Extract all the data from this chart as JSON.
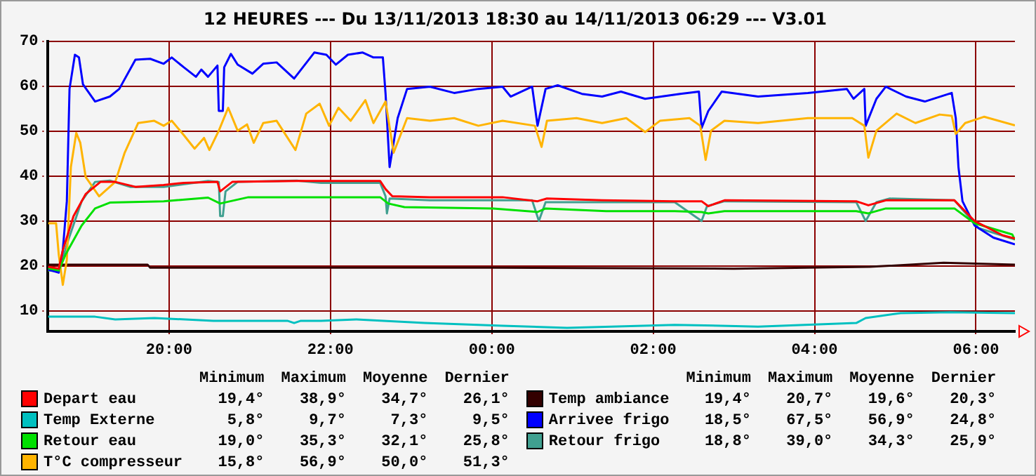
{
  "chart_data": {
    "type": "line",
    "title": "12 HEURES --- Du 13/11/2013 18:30 au 14/11/2013 06:29 --- V3.01",
    "xlim": [
      "2013-11-13T18:30",
      "2013-11-14T06:29"
    ],
    "xticks": [
      {
        "value": "2013-11-13T20:00",
        "label": "20:00"
      },
      {
        "value": "2013-11-13T22:00",
        "label": "22:00"
      },
      {
        "value": "2013-11-14T00:00",
        "label": "00:00"
      },
      {
        "value": "2013-11-14T02:00",
        "label": "02:00"
      },
      {
        "value": "2013-11-14T04:00",
        "label": "04:00"
      },
      {
        "value": "2013-11-14T06:00",
        "label": "06:00"
      }
    ],
    "ylim": [
      5.5,
      70
    ],
    "yticks": [
      10,
      20,
      30,
      40,
      50,
      60,
      70
    ],
    "grid": true,
    "legend": "bottom",
    "marker": "none",
    "line_style": "solid",
    "series": [
      {
        "name": "Depart eau",
        "color": "#ff0000",
        "x": [
          "2013-11-13T18:30",
          "2013-11-13T18:38",
          "2013-11-13T18:41",
          "2013-11-13T18:49",
          "2013-11-13T18:58",
          "2013-11-13T19:09",
          "2013-11-13T19:20",
          "2013-11-13T19:35",
          "2013-11-13T19:56",
          "2013-11-13T20:11",
          "2013-11-13T20:36",
          "2013-11-13T20:38",
          "2013-11-13T20:47",
          "2013-11-13T21:35",
          "2013-11-13T22:37",
          "2013-11-13T22:41",
          "2013-11-13T22:46",
          "2013-11-13T23:14",
          "2013-11-14T00:08",
          "2013-11-14T00:34",
          "2013-11-14T00:41",
          "2013-11-14T01:22",
          "2013-11-14T02:16",
          "2013-11-14T02:36",
          "2013-11-14T02:41",
          "2013-11-14T02:53",
          "2013-11-14T04:31",
          "2013-11-14T04:40",
          "2013-11-14T04:53",
          "2013-11-14T05:44",
          "2013-11-14T05:59",
          "2013-11-14T06:20",
          "2013-11-14T06:29"
        ],
        "values": [
          19.8,
          19.4,
          23.5,
          31.1,
          36,
          38.7,
          38.7,
          37.6,
          38,
          38.5,
          38.7,
          36.6,
          38.7,
          38.9,
          38.9,
          37.1,
          35.5,
          35.3,
          35.3,
          34.4,
          35,
          34.6,
          34.4,
          34.4,
          33.3,
          34.6,
          34.4,
          33.5,
          34.6,
          34.6,
          30,
          26.8,
          26.1
        ]
      },
      {
        "name": "Temp Externe",
        "color": "#00c0c0",
        "x": [
          "2013-11-13T18:30",
          "2013-11-13T19:05",
          "2013-11-13T19:20",
          "2013-11-13T19:49",
          "2013-11-13T20:33",
          "2013-11-13T21:28",
          "2013-11-13T21:33",
          "2013-11-13T21:38",
          "2013-11-13T21:53",
          "2013-11-13T22:19",
          "2013-11-13T23:10",
          "2013-11-14T00:08",
          "2013-11-14T00:56",
          "2013-11-14T02:16",
          "2013-11-14T03:18",
          "2013-11-14T04:31",
          "2013-11-14T04:38",
          "2013-11-14T05:04",
          "2013-11-14T05:41",
          "2013-11-14T06:29"
        ],
        "values": [
          8.7,
          8.7,
          8.1,
          8.4,
          7.8,
          7.8,
          7.3,
          7.8,
          7.8,
          8.1,
          7.3,
          6.7,
          6.2,
          6.9,
          6.5,
          7.3,
          8.4,
          9.5,
          9.7,
          9.5
        ]
      },
      {
        "name": "Retour eau",
        "color": "#00e000",
        "x": [
          "2013-11-13T18:30",
          "2013-11-13T18:38",
          "2013-11-13T18:43",
          "2013-11-13T18:55",
          "2013-11-13T19:05",
          "2013-11-13T19:16",
          "2013-11-13T19:56",
          "2013-11-13T20:29",
          "2013-11-13T20:38",
          "2013-11-13T20:59",
          "2013-11-13T21:53",
          "2013-11-13T22:37",
          "2013-11-13T22:43",
          "2013-11-13T22:55",
          "2013-11-14T00:01",
          "2013-11-14T00:34",
          "2013-11-14T00:40",
          "2013-11-14T01:25",
          "2013-11-14T02:16",
          "2013-11-14T02:36",
          "2013-11-14T02:41",
          "2013-11-14T02:53",
          "2013-11-14T04:31",
          "2013-11-14T04:40",
          "2013-11-14T04:53",
          "2013-11-14T05:44",
          "2013-11-14T05:59",
          "2013-11-14T06:27",
          "2013-11-14T06:29"
        ],
        "values": [
          19.5,
          19,
          22.5,
          29,
          32.8,
          34.1,
          34.4,
          35.2,
          33.9,
          35.3,
          35.3,
          35.3,
          33.9,
          33.1,
          32.8,
          32,
          32.8,
          32.2,
          32.2,
          32,
          31.7,
          32.2,
          32.2,
          31.7,
          32.8,
          32.8,
          29.5,
          27,
          25.8
        ]
      },
      {
        "name": "T°C compresseur",
        "color": "#ffb400",
        "x": [
          "2013-11-13T18:30",
          "2013-11-13T18:36",
          "2013-11-13T18:38",
          "2013-11-13T18:41",
          "2013-11-13T18:44",
          "2013-11-13T18:47",
          "2013-11-13T18:51",
          "2013-11-13T18:54",
          "2013-11-13T18:58",
          "2013-11-13T19:08",
          "2013-11-13T19:20",
          "2013-11-13T19:27",
          "2013-11-13T19:37",
          "2013-11-13T19:49",
          "2013-11-13T19:56",
          "2013-11-13T20:02",
          "2013-11-13T20:11",
          "2013-11-13T20:19",
          "2013-11-13T20:26",
          "2013-11-13T20:30",
          "2013-11-13T20:37",
          "2013-11-13T20:44",
          "2013-11-13T20:51",
          "2013-11-13T20:58",
          "2013-11-13T21:03",
          "2013-11-13T21:10",
          "2013-11-13T21:20",
          "2013-11-13T21:34",
          "2013-11-13T21:42",
          "2013-11-13T21:52",
          "2013-11-13T21:59",
          "2013-11-13T22:06",
          "2013-11-13T22:15",
          "2013-11-13T22:26",
          "2013-11-13T22:32",
          "2013-11-13T22:41",
          "2013-11-13T22:47",
          "2013-11-13T22:57",
          "2013-11-13T23:14",
          "2013-11-13T23:32",
          "2013-11-13T23:50",
          "2013-11-14T00:08",
          "2013-11-14T00:32",
          "2013-11-14T00:37",
          "2013-11-14T00:41",
          "2013-11-14T01:03",
          "2013-11-14T01:22",
          "2013-11-14T01:40",
          "2013-11-14T01:54",
          "2013-11-14T02:05",
          "2013-11-14T02:27",
          "2013-11-14T02:35",
          "2013-11-14T02:39",
          "2013-11-14T02:43",
          "2013-11-14T02:53",
          "2013-11-14T03:18",
          "2013-11-14T03:55",
          "2013-11-14T04:28",
          "2013-11-14T04:37",
          "2013-11-14T04:40",
          "2013-11-14T04:46",
          "2013-11-14T05:01",
          "2013-11-14T05:15",
          "2013-11-14T05:33",
          "2013-11-14T05:42",
          "2013-11-14T05:45",
          "2013-11-14T05:52",
          "2013-11-14T06:06",
          "2013-11-14T06:29"
        ],
        "values": [
          29.5,
          29.5,
          22.5,
          15.8,
          21.4,
          42,
          49.6,
          47.4,
          39.8,
          35.5,
          38.7,
          45.2,
          51.8,
          52.3,
          51.2,
          52.3,
          49.1,
          46.1,
          48.5,
          45.8,
          50.1,
          55.2,
          50.1,
          51.5,
          47.4,
          51.8,
          52.3,
          45.8,
          53.9,
          56.1,
          51.2,
          55.2,
          52.3,
          56.9,
          51.8,
          56.6,
          45.2,
          52.9,
          52.3,
          52.9,
          51.2,
          52.3,
          51.2,
          46.5,
          52.3,
          52.9,
          51.8,
          52.9,
          49.8,
          52.3,
          52.9,
          51.2,
          43.6,
          50.1,
          52.3,
          51.8,
          52.9,
          52.9,
          51.2,
          44.1,
          50.1,
          53.9,
          51.8,
          53.7,
          53.4,
          49.4,
          51.8,
          53.2,
          51.3
        ]
      },
      {
        "name": "Temp ambiance",
        "color": "#330000",
        "x": [
          "2013-11-13T18:30",
          "2013-11-13T19:44",
          "2013-11-13T19:46",
          "2013-11-14T00:00",
          "2013-11-14T03:00",
          "2013-11-14T04:41",
          "2013-11-14T05:36",
          "2013-11-14T06:29"
        ],
        "values": [
          20.3,
          20.3,
          19.6,
          19.6,
          19.4,
          19.8,
          20.7,
          20.3
        ]
      },
      {
        "name": "Arrivee frigo",
        "color": "#0000ff",
        "x": [
          "2013-11-13T18:30",
          "2013-11-13T18:38",
          "2013-11-13T18:41",
          "2013-11-13T18:44",
          "2013-11-13T18:46",
          "2013-11-13T18:50",
          "2013-11-13T18:53",
          "2013-11-13T18:56",
          "2013-11-13T19:05",
          "2013-11-13T19:16",
          "2013-11-13T19:23",
          "2013-11-13T19:35",
          "2013-11-13T19:46",
          "2013-11-13T19:56",
          "2013-11-13T20:02",
          "2013-11-13T20:11",
          "2013-11-13T20:20",
          "2013-11-13T20:24",
          "2013-11-13T20:29",
          "2013-11-13T20:36",
          "2013-11-13T20:37",
          "2013-11-13T20:40",
          "2013-11-13T20:41",
          "2013-11-13T20:46",
          "2013-11-13T20:51",
          "2013-11-13T21:02",
          "2013-11-13T21:10",
          "2013-11-13T21:20",
          "2013-11-13T21:33",
          "2013-11-13T21:48",
          "2013-11-13T21:57",
          "2013-11-13T22:04",
          "2013-11-13T22:13",
          "2013-11-13T22:24",
          "2013-11-13T22:32",
          "2013-11-13T22:39",
          "2013-11-13T22:41",
          "2013-11-13T22:44",
          "2013-11-13T22:50",
          "2013-11-13T22:57",
          "2013-11-13T23:14",
          "2013-11-13T23:32",
          "2013-11-13T23:50",
          "2013-11-14T00:08",
          "2013-11-14T00:14",
          "2013-11-14T00:30",
          "2013-11-14T00:34",
          "2013-11-14T00:40",
          "2013-11-14T00:49",
          "2013-11-14T01:07",
          "2013-11-14T01:22",
          "2013-11-14T01:36",
          "2013-11-14T01:54",
          "2013-11-14T02:20",
          "2013-11-14T02:34",
          "2013-11-14T02:36",
          "2013-11-14T02:41",
          "2013-11-14T02:51",
          "2013-11-14T03:18",
          "2013-11-14T03:55",
          "2013-11-14T04:24",
          "2013-11-14T04:29",
          "2013-11-14T04:37",
          "2013-11-14T04:38",
          "2013-11-14T04:46",
          "2013-11-14T04:53",
          "2013-11-14T05:08",
          "2013-11-14T05:22",
          "2013-11-14T05:42",
          "2013-11-14T05:45",
          "2013-11-14T05:47",
          "2013-11-14T05:50",
          "2013-11-14T05:59",
          "2013-11-14T06:13",
          "2013-11-14T06:29"
        ],
        "values": [
          19.2,
          18.5,
          23.5,
          34.4,
          59.4,
          67,
          66.4,
          60.4,
          56.6,
          57.7,
          59.4,
          65.9,
          66.1,
          65,
          66.4,
          64.2,
          62.1,
          63.7,
          62.1,
          64.6,
          54.5,
          54.5,
          64.2,
          67.2,
          64.8,
          62.8,
          65,
          65.3,
          61.7,
          67.5,
          67,
          64.8,
          67,
          67.5,
          66.4,
          66.4,
          58.3,
          42,
          52.9,
          59.4,
          59.9,
          58.5,
          59.4,
          59.9,
          57.7,
          59.9,
          51.2,
          59.4,
          60.2,
          58.3,
          57.7,
          58.8,
          57.2,
          58.3,
          58.8,
          50.7,
          54.5,
          58.8,
          57.7,
          58.5,
          59.4,
          57.2,
          59.4,
          51.2,
          57.2,
          59.9,
          57.7,
          56.6,
          58.5,
          52.9,
          42,
          34.4,
          29,
          26.3,
          24.8
        ]
      },
      {
        "name": "Retour frigo",
        "color": "#40a090",
        "x": [
          "2013-11-13T18:30",
          "2013-11-13T18:38",
          "2013-11-13T18:45",
          "2013-11-13T18:55",
          "2013-11-13T19:05",
          "2013-11-13T19:16",
          "2013-11-13T19:31",
          "2013-11-13T19:56",
          "2013-11-13T20:29",
          "2013-11-13T20:37",
          "2013-11-13T20:38",
          "2013-11-13T20:40",
          "2013-11-13T20:42",
          "2013-11-13T20:51",
          "2013-11-13T21:35",
          "2013-11-13T21:53",
          "2013-11-13T22:37",
          "2013-11-13T22:41",
          "2013-11-13T22:42",
          "2013-11-13T22:44",
          "2013-11-13T23:14",
          "2013-11-14T00:30",
          "2013-11-14T00:35",
          "2013-11-14T00:40",
          "2013-11-14T02:16",
          "2013-11-14T02:36",
          "2013-11-14T02:40",
          "2013-11-14T02:53",
          "2013-11-14T04:31",
          "2013-11-14T04:38",
          "2013-11-14T04:46",
          "2013-11-14T04:56",
          "2013-11-14T05:44",
          "2013-11-14T06:02",
          "2013-11-14T06:29"
        ],
        "values": [
          19,
          18.8,
          25.7,
          34.4,
          38.7,
          39,
          37.6,
          37.6,
          38.9,
          38.7,
          31.1,
          31.1,
          36.6,
          38.7,
          39,
          38.5,
          38.5,
          35.5,
          31.7,
          35,
          34.6,
          34.6,
          30,
          34.2,
          34.2,
          30,
          33.3,
          34.4,
          34.2,
          30,
          34.2,
          35,
          34.6,
          28.4,
          25.9
        ]
      }
    ],
    "annotations": [
      "Minimum",
      "Maximum",
      "Moyenne",
      "Dernier",
      "Minimum",
      "Maximum",
      "Moyenne",
      "Dernier",
      "19,4°",
      "38,9°",
      "34,7°",
      "26,1°",
      "5,8°",
      "9,7°",
      "7,3°",
      "9,5°",
      "19,0°",
      "35,3°",
      "32,1°",
      "25,8°",
      "15,8°",
      "56,9°",
      "50,0°",
      "51,3°",
      "19,4°",
      "20,7°",
      "19,6°",
      "20,3°",
      "18,5°",
      "67,5°",
      "56,9°",
      "24,8°",
      "18,8°",
      "39,0°",
      "34,3°",
      "25,9°"
    ]
  }
}
